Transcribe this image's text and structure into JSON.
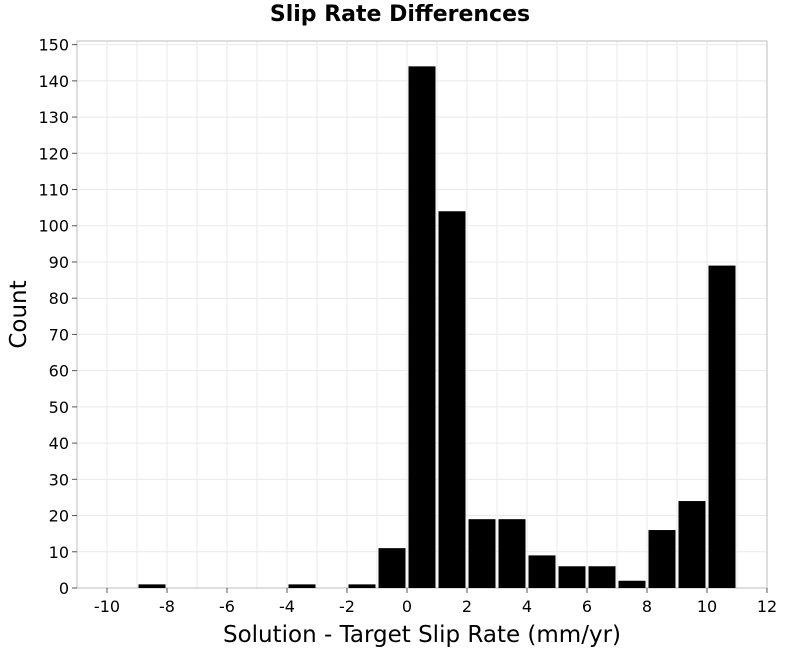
{
  "chart_data": {
    "type": "bar",
    "title": "Slip Rate Differences",
    "xlabel": "Solution - Target Slip Rate (mm/yr)",
    "ylabel": "Count",
    "xlim": [
      -11,
      12
    ],
    "ylim": [
      0,
      151
    ],
    "xticks": [
      -10,
      -8,
      -6,
      -4,
      -2,
      0,
      2,
      4,
      6,
      8,
      10,
      12
    ],
    "yticks": [
      0,
      10,
      20,
      30,
      40,
      50,
      60,
      70,
      80,
      90,
      100,
      110,
      120,
      130,
      140,
      150
    ],
    "bin_width": 1,
    "bins": [
      {
        "x": -8.5,
        "value": 1
      },
      {
        "x": -3.5,
        "value": 1
      },
      {
        "x": -1.5,
        "value": 1
      },
      {
        "x": -0.5,
        "value": 11
      },
      {
        "x": 0.5,
        "value": 144
      },
      {
        "x": 1.5,
        "value": 104
      },
      {
        "x": 2.5,
        "value": 19
      },
      {
        "x": 3.5,
        "value": 19
      },
      {
        "x": 4.5,
        "value": 9
      },
      {
        "x": 5.5,
        "value": 6
      },
      {
        "x": 6.5,
        "value": 6
      },
      {
        "x": 7.5,
        "value": 2
      },
      {
        "x": 8.5,
        "value": 16
      },
      {
        "x": 9.5,
        "value": 24
      },
      {
        "x": 10.5,
        "value": 89
      }
    ],
    "bar_color": "#000000",
    "grid": true,
    "legend": "none"
  }
}
